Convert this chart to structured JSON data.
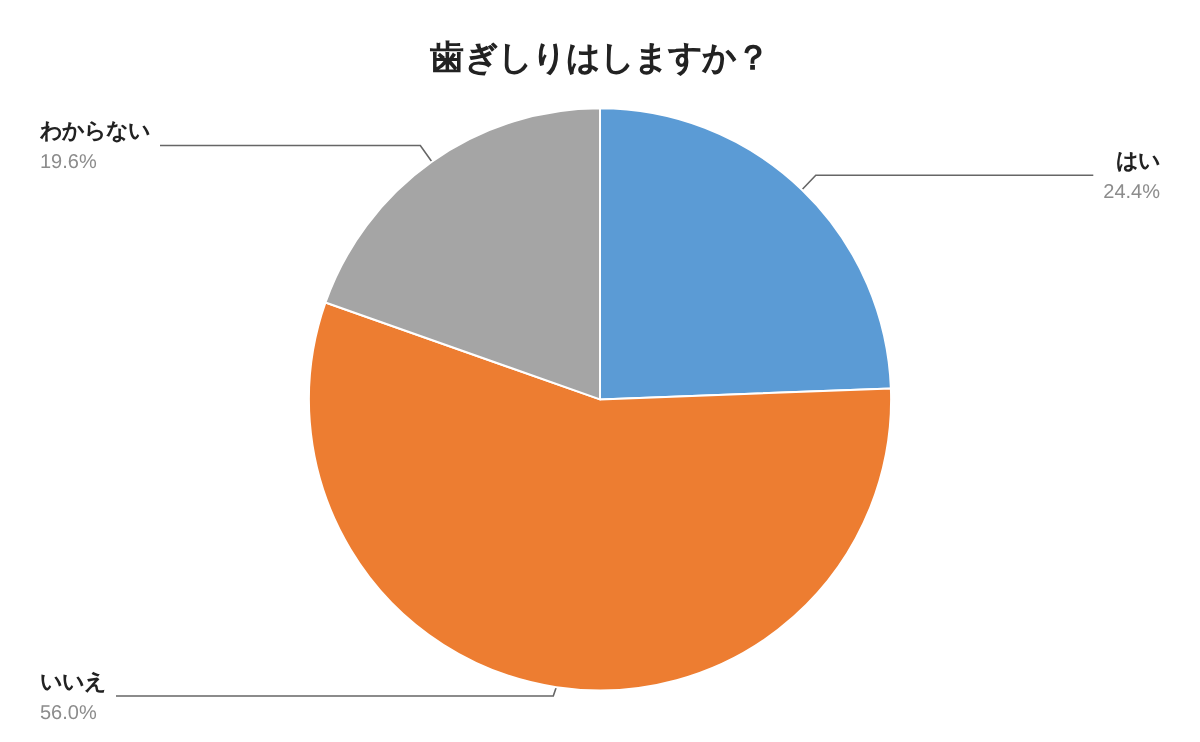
{
  "chart_data": {
    "type": "pie",
    "title": "歯ぎしりはしますか？",
    "categories": [
      "はい",
      "いいえ",
      "わからない"
    ],
    "values": [
      24.4,
      56.0,
      19.6
    ],
    "colors": [
      "#5b9bd5",
      "#ed7d31",
      "#a5a5a5"
    ],
    "value_labels": [
      "24.4%",
      "56.0%",
      "19.6%"
    ],
    "legend": false
  }
}
